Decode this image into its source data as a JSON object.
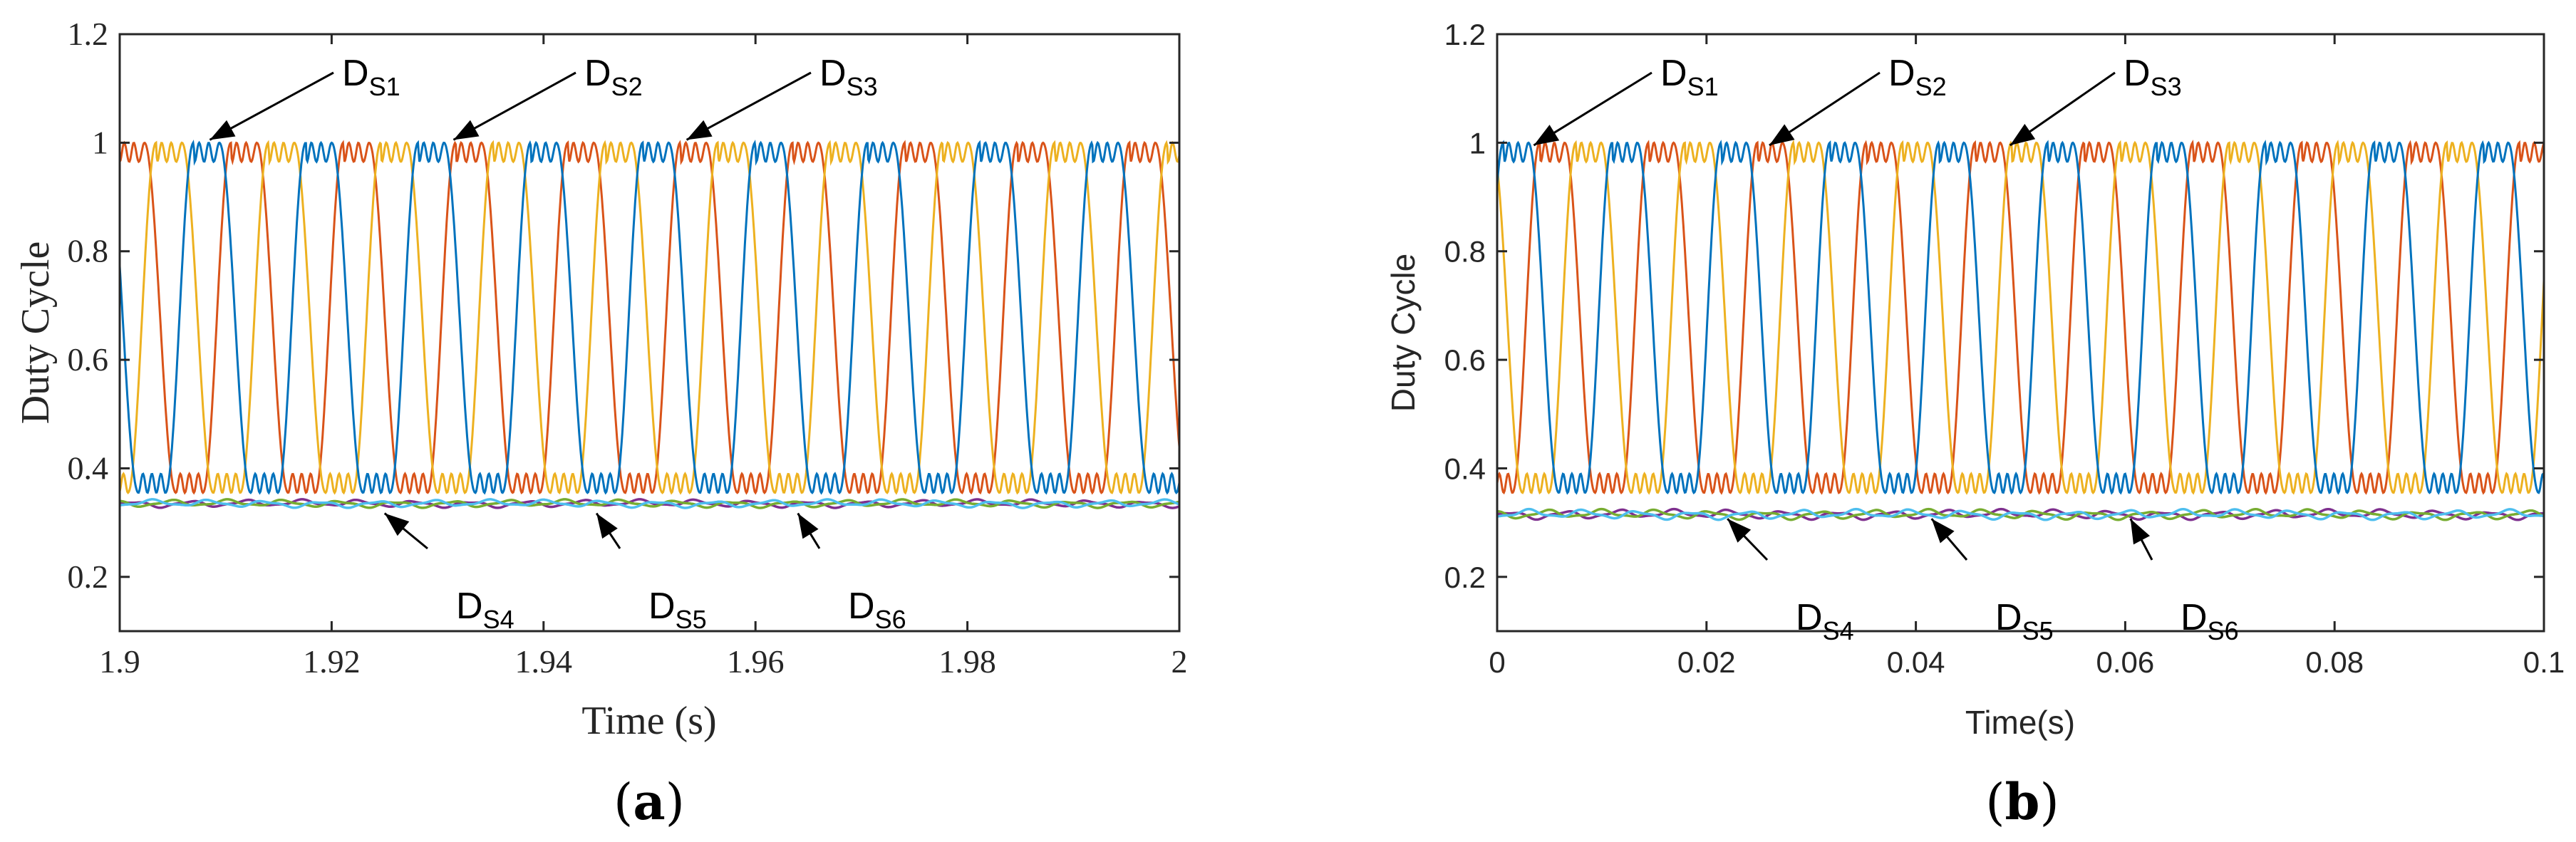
{
  "colors": {
    "series_1": "#D95319",
    "series_2": "#EDB120",
    "series_3": "#0072BD",
    "series_4": "#7E2F8E",
    "series_5": "#77AC30",
    "series_6": "#4DBEEE",
    "axis": "#262626"
  },
  "chart_data": [
    {
      "type": "line",
      "panel": "a",
      "panel_label_letter": "a",
      "xlabel": "Time (s)",
      "ylabel": "Duty Cycle",
      "xlim": [
        1.9,
        2.0
      ],
      "ylim": [
        0.1,
        1.2
      ],
      "xticks": [
        1.9,
        1.92,
        1.94,
        1.96,
        1.98,
        2.0
      ],
      "xtick_labels": [
        "1.9",
        "1.92",
        "1.94",
        "1.96",
        "1.98",
        "2"
      ],
      "yticks": [
        0.2,
        0.4,
        0.6,
        0.8,
        1.0,
        1.2
      ],
      "ytick_labels": [
        "0.2",
        "0.4",
        "0.6",
        "0.8",
        "1",
        "1.2"
      ],
      "waveform": {
        "period": 0.0106,
        "upper_high": 1.0,
        "upper_notch": 0.965,
        "low_min": 0.355,
        "low_bump": 0.39,
        "lower_level": 0.335,
        "lower_ripple": 0.008
      },
      "series": [
        {
          "name": "D_S1",
          "phase": 0.0,
          "label_main": "D",
          "label_sub": "S1"
        },
        {
          "name": "D_S2",
          "phase": 0.6667,
          "label_main": "D",
          "label_sub": "S2"
        },
        {
          "name": "D_S3",
          "phase": 0.3333,
          "label_main": "D",
          "label_sub": "S3"
        },
        {
          "name": "D_S4",
          "phase": 0.0,
          "label_main": "D",
          "label_sub": "S4"
        },
        {
          "name": "D_S5",
          "phase": 0.3333,
          "label_main": "D",
          "label_sub": "S5"
        },
        {
          "name": "D_S6",
          "phase": 0.6667,
          "label_main": "D",
          "label_sub": "S6"
        }
      ],
      "annotations": [
        {
          "series": "D_S1",
          "label_main": "D",
          "label_sub": "S1",
          "x": 1.9085,
          "y": 1.0
        },
        {
          "series": "D_S2",
          "label_main": "D",
          "label_sub": "S2",
          "x": 1.9315,
          "y": 1.0
        },
        {
          "series": "D_S3",
          "label_main": "D",
          "label_sub": "S3",
          "x": 1.9535,
          "y": 1.0
        },
        {
          "series": "D_S4",
          "label_main": "D",
          "label_sub": "S4",
          "x": 1.925,
          "y": 0.325
        },
        {
          "series": "D_S5",
          "label_main": "D",
          "label_sub": "S5",
          "x": 1.945,
          "y": 0.325
        },
        {
          "series": "D_S6",
          "label_main": "D",
          "label_sub": "S6",
          "x": 1.964,
          "y": 0.325
        }
      ]
    },
    {
      "type": "line",
      "panel": "b",
      "panel_label_letter": "b",
      "xlabel": "Time(s)",
      "ylabel": "Duty Cycle",
      "xlim": [
        0,
        0.1
      ],
      "ylim": [
        0.1,
        1.2
      ],
      "xticks": [
        0,
        0.02,
        0.04,
        0.06,
        0.08,
        0.1
      ],
      "xtick_labels": [
        "0",
        "0.02",
        "0.04",
        "0.06",
        "0.08",
        "0.1"
      ],
      "yticks": [
        0.2,
        0.4,
        0.6,
        0.8,
        1.0,
        1.2
      ],
      "ytick_labels": [
        "0.2",
        "0.4",
        "0.6",
        "0.8",
        "1",
        "1.2"
      ],
      "waveform": {
        "period": 0.0104,
        "upper_high": 1.0,
        "upper_notch": 0.965,
        "low_min": 0.355,
        "low_bump": 0.39,
        "lower_level": 0.315,
        "lower_ripple": 0.01
      },
      "series": [
        {
          "name": "D_S1",
          "phase": 0.6,
          "label_main": "D",
          "label_sub": "S1"
        },
        {
          "name": "D_S2",
          "phase": 0.2667,
          "label_main": "D",
          "label_sub": "S2"
        },
        {
          "name": "D_S3",
          "phase": 0.9333,
          "label_main": "D",
          "label_sub": "S3"
        },
        {
          "name": "D_S4",
          "phase": 0.0,
          "label_main": "D",
          "label_sub": "S4"
        },
        {
          "name": "D_S5",
          "phase": 0.3333,
          "label_main": "D",
          "label_sub": "S5"
        },
        {
          "name": "D_S6",
          "phase": 0.6667,
          "label_main": "D",
          "label_sub": "S6"
        }
      ],
      "annotations": [
        {
          "series": "D_S1",
          "label_main": "D",
          "label_sub": "S1",
          "x": 0.0035,
          "y": 0.99
        },
        {
          "series": "D_S2",
          "label_main": "D",
          "label_sub": "S2",
          "x": 0.026,
          "y": 0.99
        },
        {
          "series": "D_S3",
          "label_main": "D",
          "label_sub": "S3",
          "x": 0.049,
          "y": 0.99
        },
        {
          "series": "D_S4",
          "label_main": "D",
          "label_sub": "S4",
          "x": 0.022,
          "y": 0.315
        },
        {
          "series": "D_S5",
          "label_main": "D",
          "label_sub": "S5",
          "x": 0.0415,
          "y": 0.315
        },
        {
          "series": "D_S6",
          "label_main": "D",
          "label_sub": "S6",
          "x": 0.0605,
          "y": 0.315
        }
      ]
    }
  ]
}
